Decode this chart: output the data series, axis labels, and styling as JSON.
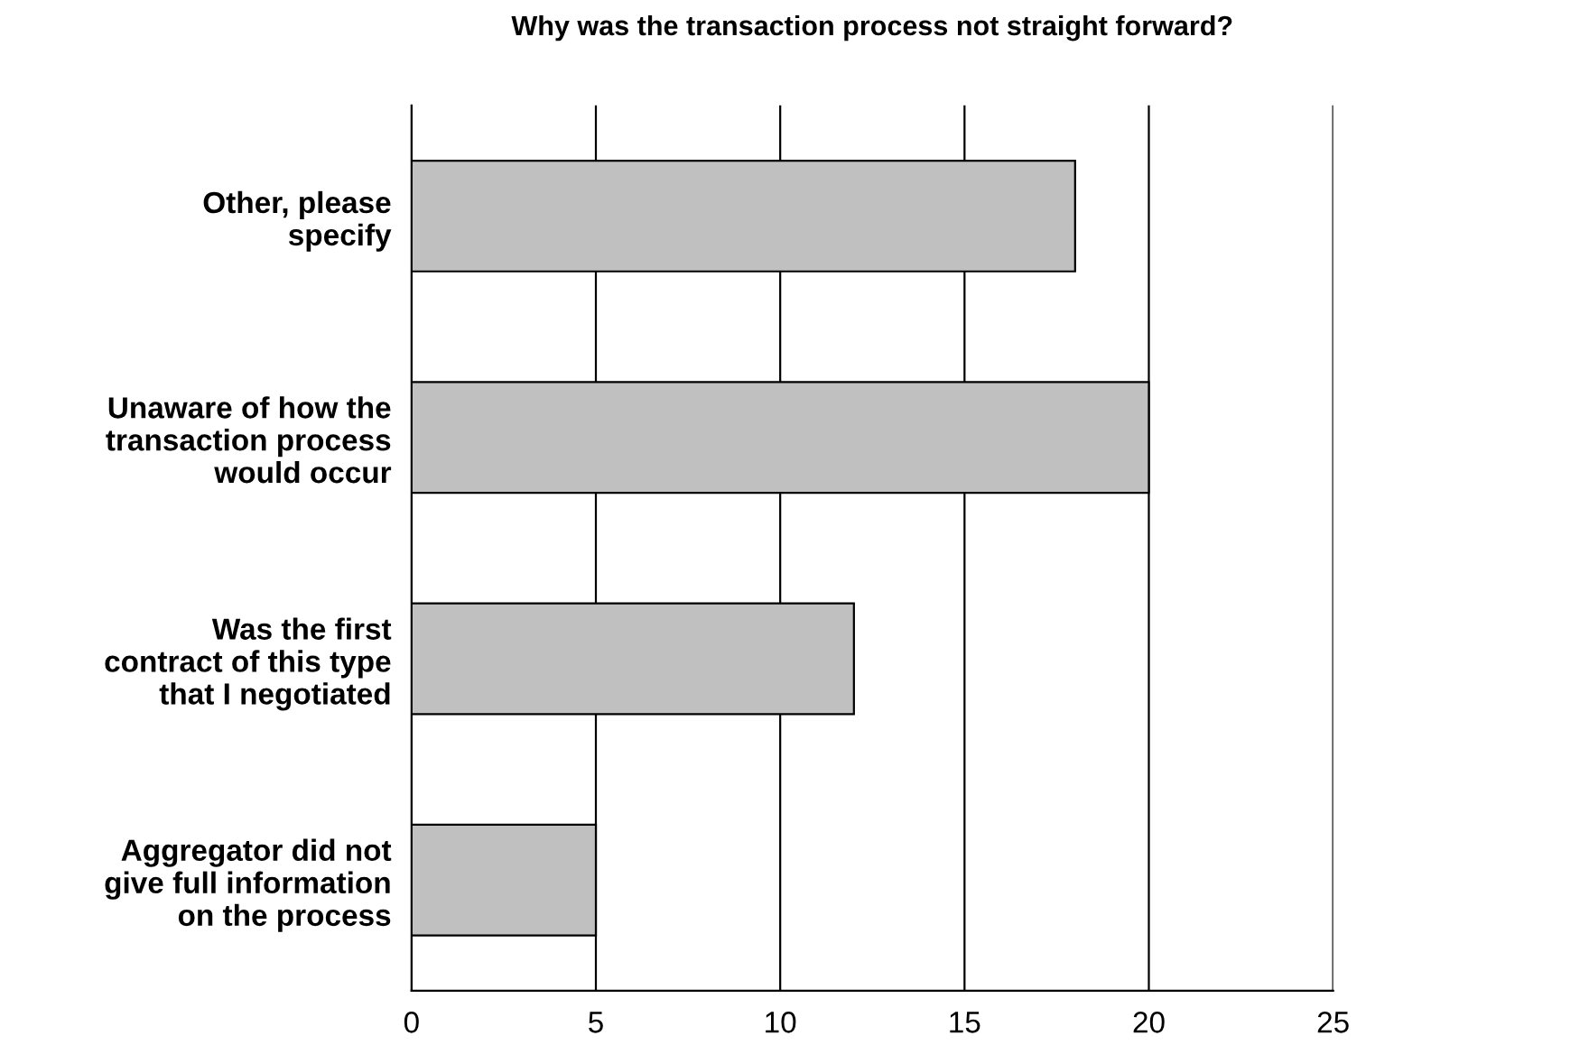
{
  "chart_data": {
    "type": "bar",
    "orientation": "horizontal",
    "title": "Why was the transaction process not straight forward?",
    "categories": [
      "Other, please\nspecify",
      "Unaware of how the\ntransaction process\nwould occur",
      "Was the first\ncontract of this type\nthat I negotiated",
      "Aggregator did not\ngive full information\non the process"
    ],
    "values": [
      18,
      20,
      12,
      5
    ],
    "color": "#c0c0c0",
    "xlim": [
      0,
      25
    ],
    "xticks": [
      0,
      5,
      10,
      15,
      20,
      25
    ],
    "grid": "x"
  }
}
